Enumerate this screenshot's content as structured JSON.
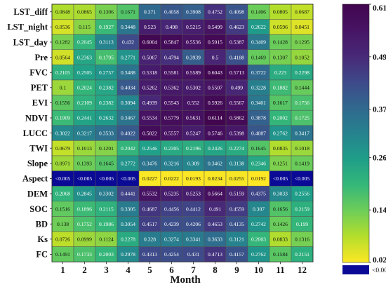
{
  "chart_data": {
    "type": "heatmap",
    "xlabel": "Month",
    "categories": [
      "1",
      "2",
      "3",
      "4",
      "5",
      "6",
      "7",
      "8",
      "9",
      "10",
      "11",
      "12"
    ],
    "rows": [
      "LST_diff",
      "LST_night",
      "LST_day",
      "Pre",
      "FVC",
      "PET",
      "EVI",
      "NDVI",
      "LUCC",
      "TWI",
      "Slope",
      "Aspect",
      "DEM",
      "SOC",
      "BD",
      "Ks",
      "FC"
    ],
    "values": [
      [
        "0.0848",
        "0.0865",
        "0.1306",
        "0.1671",
        "0.371",
        "0.4058",
        "0.3908",
        "0.4752",
        "0.4098",
        "0.1406",
        "0.0805",
        "0.0687"
      ],
      [
        "0.0536",
        "0.115",
        "0.1927",
        "0.3448",
        "0.523",
        "0.498",
        "0.5215",
        "0.5499",
        "0.4623",
        "0.2622",
        "0.0596",
        "0.0451"
      ],
      [
        "0.1282",
        "0.2045",
        "0.3113",
        "0.432",
        "0.6004",
        "0.5847",
        "0.5536",
        "0.5915",
        "0.5387",
        "0.3409",
        "0.1428",
        "0.1295"
      ],
      [
        "0.0564",
        "0.2363",
        "0.1795",
        "0.2771",
        "0.5067",
        "0.4794",
        "0.3939",
        "0.5",
        "0.4188",
        "0.1469",
        "0.1307",
        "0.1052"
      ],
      [
        "0.2105",
        "0.2505",
        "0.2757",
        "0.3488",
        "0.5318",
        "0.5581",
        "0.5589",
        "0.6043",
        "0.5713",
        "0.3722",
        "0.223",
        "0.2298"
      ],
      [
        "0.1",
        "0.2024",
        "0.2382",
        "0.4034",
        "0.5262",
        "0.5362",
        "0.5302",
        "0.5507",
        "0.499",
        "0.3228",
        "0.1882",
        "0.1444"
      ],
      [
        "0.1556",
        "0.2109",
        "0.2382",
        "0.3094",
        "0.4939",
        "0.5543",
        "0.552",
        "0.5926",
        "0.5567",
        "0.3401",
        "0.1617",
        "0.1756"
      ],
      [
        "0.1909",
        "0.2441",
        "0.2632",
        "0.3467",
        "0.5534",
        "0.5779",
        "0.5631",
        "0.6114",
        "0.5862",
        "0.3878",
        "0.2002",
        "0.1725"
      ],
      [
        "0.3022",
        "0.3217",
        "0.3533",
        "0.4022",
        "0.5822",
        "0.5557",
        "0.5247",
        "0.5746",
        "0.5398",
        "0.4087",
        "0.2762",
        "0.3417"
      ],
      [
        "0.0679",
        "0.1013",
        "0.1201",
        "0.2042",
        "0.2546",
        "0.2305",
        "0.2196",
        "0.2426",
        "0.2274",
        "0.1645",
        "0.0835",
        "0.1018"
      ],
      [
        "0.0971",
        "0.1393",
        "0.1645",
        "0.2772",
        "0.3476",
        "0.3216",
        "0.309",
        "0.3462",
        "0.3138",
        "0.2346",
        "0.1251",
        "0.1419"
      ],
      [
        "<0.005",
        "<0.005",
        "<0.005",
        "<0.005",
        "0.0227",
        "0.0222",
        "0.0193",
        "0.0234",
        "0.0255",
        "0.0192",
        "<0.005",
        "<0.005"
      ],
      [
        "0.2068",
        "0.2845",
        "0.3302",
        "0.4441",
        "0.5532",
        "0.5235",
        "0.5253",
        "0.5664",
        "0.5159",
        "0.4375",
        "0.3033",
        "0.2556"
      ],
      [
        "0.1516",
        "0.1896",
        "0.2115",
        "0.3305",
        "0.4687",
        "0.4456",
        "0.4412",
        "0.491",
        "0.4559",
        "0.307",
        "0.1656",
        "0.2159"
      ],
      [
        "0.138",
        "0.1752",
        "0.1986",
        "0.3054",
        "0.4517",
        "0.4239",
        "0.4206",
        "0.4653",
        "0.4135",
        "0.2742",
        "0.1426",
        "0.199"
      ],
      [
        "0.0726",
        "0.0999",
        "0.1124",
        "0.2278",
        "0.328",
        "0.3274",
        "0.3341",
        "0.3633",
        "0.3121",
        "0.2003",
        "0.0833",
        "0.1316"
      ],
      [
        "0.1491",
        "0.1733",
        "0.2003",
        "0.2978",
        "0.4313",
        "0.4254",
        "0.431",
        "0.4713",
        "0.4157",
        "0.2762",
        "0.1584",
        "0.2151"
      ]
    ],
    "colorbar": {
      "min": 0.02,
      "max": 0.61,
      "ticks": [
        "0.61",
        "0.49",
        "0.37",
        "0.26",
        "0.14",
        "0.02"
      ],
      "colormap": "viridis (reversed: yellow low, purple high)"
    },
    "special": {
      "label": "<0.005",
      "color": "#0a0a96"
    }
  }
}
